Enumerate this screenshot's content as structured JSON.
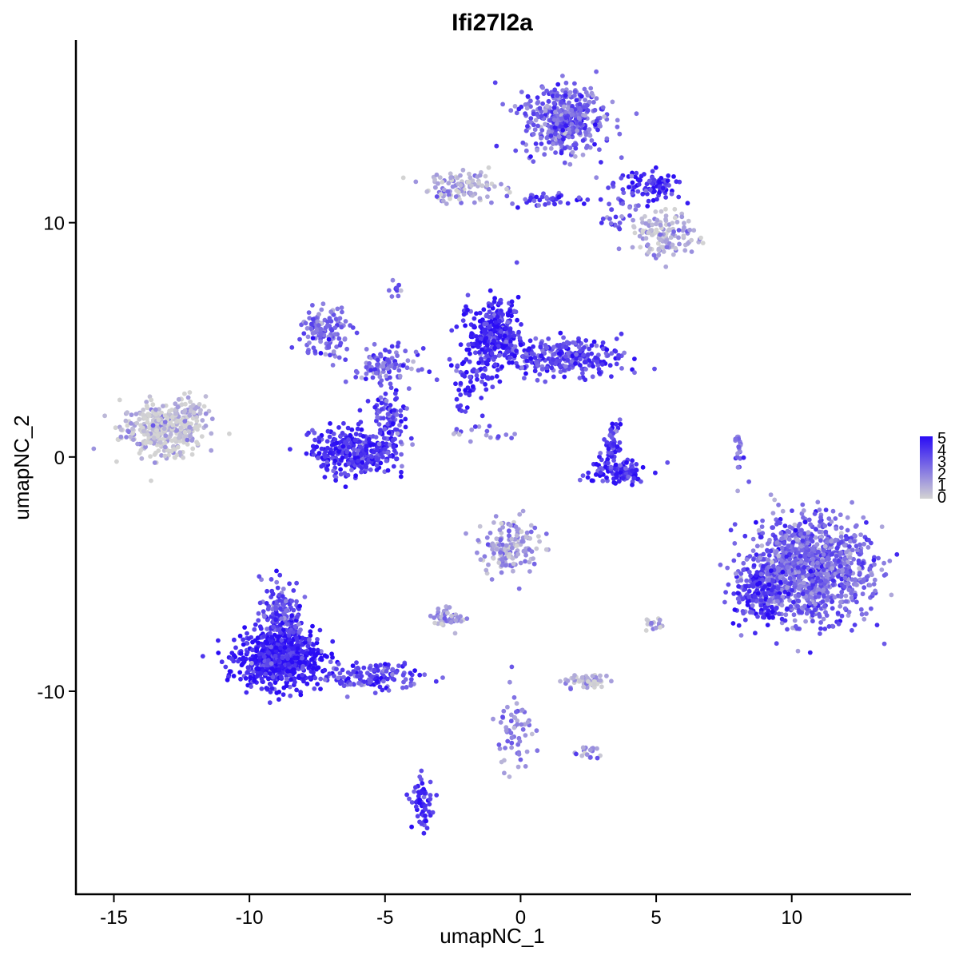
{
  "chart_data": {
    "type": "scatter",
    "title": "Ifi27l2a",
    "xlabel": "umapNC_1",
    "ylabel": "umapNC_2",
    "xlim": [
      -16.4,
      14.4
    ],
    "ylim": [
      -18.7,
      17.8
    ],
    "xticks": [
      -15,
      -10,
      -5,
      0,
      5,
      10
    ],
    "yticks": [
      -10,
      0,
      10
    ],
    "xtick_labels": [
      "-15",
      "-10",
      "-5",
      "0",
      "5",
      "10"
    ],
    "ytick_labels": [
      "-10",
      "0",
      "10"
    ],
    "grid": false,
    "legend": {
      "placement": "right",
      "type": "colorbar",
      "labels": [
        "5",
        "4",
        "3",
        "2",
        "1",
        "0"
      ],
      "values": [
        5,
        4,
        3,
        2,
        1,
        0
      ],
      "range": [
        0,
        5
      ],
      "color_low": "#d3d3d3",
      "color_high": "#2a0cf5"
    },
    "clusters": [
      {
        "cx": -13.2,
        "cy": 1.2,
        "sx": 0.75,
        "sy": 0.55,
        "n": 380,
        "expr": 0.3
      },
      {
        "cx": -12.1,
        "cy": 2.0,
        "sx": 0.3,
        "sy": 0.4,
        "n": 30,
        "expr": 0.4
      },
      {
        "cx": -8.9,
        "cy": -8.6,
        "sx": 0.75,
        "sy": 0.6,
        "n": 700,
        "expr": 4.4
      },
      {
        "cx": -8.8,
        "cy": -6.6,
        "sx": 0.4,
        "sy": 0.7,
        "n": 150,
        "expr": 3.6
      },
      {
        "cx": -5.6,
        "cy": -9.4,
        "sx": 1.0,
        "sy": 0.3,
        "n": 140,
        "expr": 3.6
      },
      {
        "cx": -3.6,
        "cy": -14.8,
        "sx": 0.2,
        "sy": 0.5,
        "n": 60,
        "expr": 3.8
      },
      {
        "cx": -6.2,
        "cy": 0.2,
        "sx": 0.75,
        "sy": 0.5,
        "n": 320,
        "expr": 4.1
      },
      {
        "cx": -4.8,
        "cy": 1.5,
        "sx": 0.35,
        "sy": 0.7,
        "n": 110,
        "expr": 3.6
      },
      {
        "cx": -7.2,
        "cy": 5.3,
        "sx": 0.45,
        "sy": 0.55,
        "n": 130,
        "expr": 2.6
      },
      {
        "cx": -5.0,
        "cy": 3.9,
        "sx": 0.6,
        "sy": 0.35,
        "n": 100,
        "expr": 2.8
      },
      {
        "cx": -1.0,
        "cy": 5.3,
        "sx": 0.45,
        "sy": 0.7,
        "n": 280,
        "expr": 4.2
      },
      {
        "cx": 1.6,
        "cy": 4.3,
        "sx": 1.1,
        "sy": 0.4,
        "n": 280,
        "expr": 3.6
      },
      {
        "cx": -1.8,
        "cy": 3.4,
        "sx": 0.5,
        "sy": 0.7,
        "n": 80,
        "expr": 4.0
      },
      {
        "cx": 1.6,
        "cy": 14.4,
        "sx": 0.75,
        "sy": 0.75,
        "n": 420,
        "expr": 2.8
      },
      {
        "cx": 4.8,
        "cy": 11.6,
        "sx": 0.6,
        "sy": 0.3,
        "n": 90,
        "expr": 4.2
      },
      {
        "cx": 5.3,
        "cy": 9.5,
        "sx": 0.6,
        "sy": 0.45,
        "n": 130,
        "expr": 0.9
      },
      {
        "cx": -2.2,
        "cy": 11.5,
        "sx": 0.7,
        "sy": 0.35,
        "n": 110,
        "expr": 1.1
      },
      {
        "cx": 0.8,
        "cy": 11.0,
        "sx": 0.8,
        "sy": 0.15,
        "n": 40,
        "expr": 3.6
      },
      {
        "cx": 3.6,
        "cy": 10.6,
        "sx": 0.4,
        "sy": 0.6,
        "n": 40,
        "expr": 2.8
      },
      {
        "cx": 3.6,
        "cy": -0.6,
        "sx": 0.55,
        "sy": 0.3,
        "n": 120,
        "expr": 4.1
      },
      {
        "cx": 3.4,
        "cy": 0.8,
        "sx": 0.2,
        "sy": 0.45,
        "n": 45,
        "expr": 3.8
      },
      {
        "cx": 10.6,
        "cy": -4.8,
        "sx": 1.1,
        "sy": 1.05,
        "n": 1150,
        "expr": 2.7
      },
      {
        "cx": 8.8,
        "cy": -5.9,
        "sx": 0.45,
        "sy": 0.7,
        "n": 180,
        "expr": 3.9
      },
      {
        "cx": -0.4,
        "cy": -3.8,
        "sx": 0.55,
        "sy": 0.6,
        "n": 150,
        "expr": 1.4
      },
      {
        "cx": -2.6,
        "cy": -6.9,
        "sx": 0.3,
        "sy": 0.2,
        "n": 45,
        "expr": 1.6
      },
      {
        "cx": 2.4,
        "cy": -9.6,
        "sx": 0.4,
        "sy": 0.15,
        "n": 60,
        "expr": 0.8
      },
      {
        "cx": -0.2,
        "cy": -11.6,
        "sx": 0.3,
        "sy": 0.8,
        "n": 60,
        "expr": 2.0
      },
      {
        "cx": 2.4,
        "cy": -12.6,
        "sx": 0.3,
        "sy": 0.2,
        "n": 20,
        "expr": 1.5
      },
      {
        "cx": 8.0,
        "cy": 0.3,
        "sx": 0.1,
        "sy": 0.5,
        "n": 20,
        "expr": 2.5
      },
      {
        "cx": 5.0,
        "cy": -7.2,
        "sx": 0.2,
        "sy": 0.2,
        "n": 15,
        "expr": 1.2
      },
      {
        "cx": -1.5,
        "cy": 0.9,
        "sx": 0.6,
        "sy": 0.3,
        "n": 18,
        "expr": 2.3
      },
      {
        "cx": -4.6,
        "cy": 7.2,
        "sx": 0.1,
        "sy": 0.3,
        "n": 10,
        "expr": 3.0
      }
    ]
  }
}
